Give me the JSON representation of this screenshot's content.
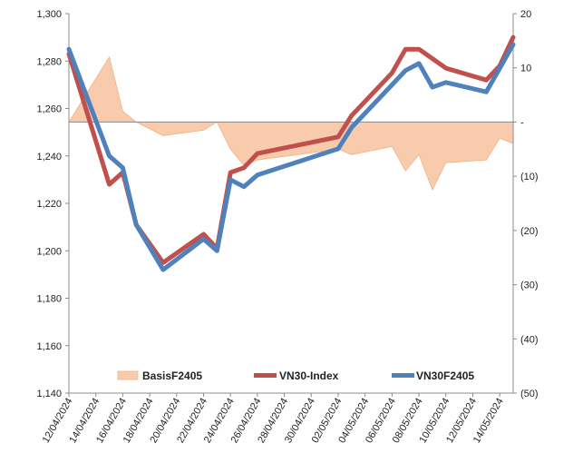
{
  "chart_data": {
    "type": "line",
    "x": [
      "12/04/2024",
      "15/04/2024",
      "16/04/2024",
      "17/04/2024",
      "19/04/2024",
      "22/04/2024",
      "23/04/2024",
      "24/04/2024",
      "25/04/2024",
      "26/04/2024",
      "02/05/2024",
      "03/05/2024",
      "06/05/2024",
      "07/05/2024",
      "08/05/2024",
      "09/05/2024",
      "10/05/2024",
      "13/05/2024",
      "14/05/2024",
      "15/05/2024"
    ],
    "x_tick_labels": [
      "12/04/2024",
      "14/04/2024",
      "16/04/2024",
      "18/04/2024",
      "20/04/2024",
      "22/04/2024",
      "24/04/2024",
      "26/04/2024",
      "28/04/2024",
      "30/04/2024",
      "02/05/2024",
      "04/05/2024",
      "06/05/2024",
      "08/05/2024",
      "10/05/2024",
      "12/05/2024",
      "14/05/2024"
    ],
    "y_left": {
      "min": 1140,
      "max": 1300,
      "step": 20,
      "tick_labels": [
        "1,140",
        "1,160",
        "1,180",
        "1,200",
        "1,220",
        "1,240",
        "1,260",
        "1,280",
        "1,300"
      ]
    },
    "y_right": {
      "min": -50,
      "max": 20,
      "step": 10,
      "tick_labels": [
        "(50)",
        "(40)",
        "(30)",
        "(20)",
        "(10)",
        "-",
        "10",
        "20"
      ]
    },
    "series": [
      {
        "name": "BasisF2405",
        "axis": "right",
        "kind": "area",
        "color": "#f8cbad",
        "stroke": "#f4b183",
        "values": [
          0,
          12,
          2,
          0,
          -2.5,
          -1.5,
          0,
          -5,
          -8,
          -7,
          -5,
          -6,
          -4.5,
          -9,
          -6,
          -12.5,
          -7.5,
          -7,
          -3,
          -4
        ]
      },
      {
        "name": "VN30-Index",
        "axis": "left",
        "kind": "line",
        "color": "#c0504d",
        "values": [
          1283,
          1228,
          1233,
          1211,
          1195,
          1207,
          1201,
          1233,
          1235,
          1241,
          1248,
          1257,
          1275,
          1285,
          1285,
          1281,
          1277,
          1272,
          1278,
          1290
        ]
      },
      {
        "name": "VN30F2405",
        "axis": "left",
        "kind": "line",
        "color": "#4f81bd",
        "values": [
          1285,
          1240,
          1235,
          1211,
          1192,
          1205,
          1200,
          1230,
          1227,
          1232,
          1243,
          1252,
          1270,
          1276,
          1279,
          1269,
          1271,
          1267,
          1277,
          1287
        ]
      }
    ],
    "legend": {
      "position": "bottom-inside",
      "entries": [
        "BasisF2405",
        "VN30-Index",
        "VN30F2405"
      ]
    },
    "grid": false
  }
}
